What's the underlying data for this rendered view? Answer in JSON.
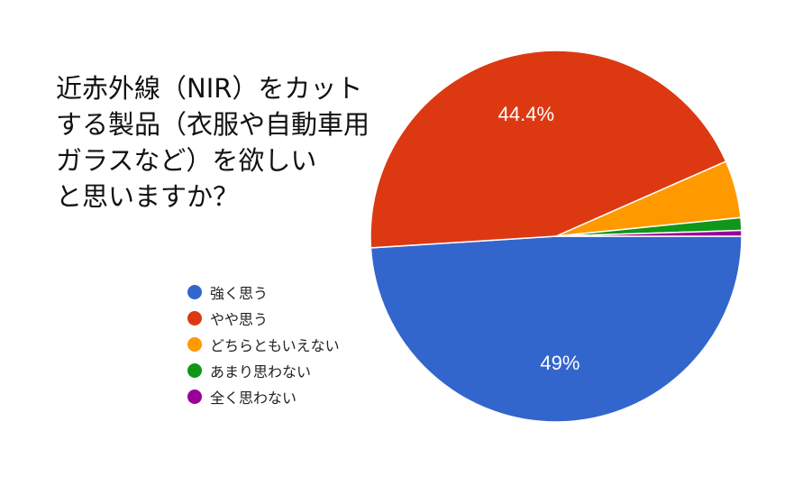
{
  "chart_data": {
    "type": "pie",
    "title_lines": [
      "近赤外線（NIR）をカット",
      "する製品（衣服や自動車用",
      "ガラスなど）を欲しい",
      "と思いますか？"
    ],
    "slices": [
      {
        "label": "強く思う",
        "value": 49,
        "display": "49%",
        "color": "#3366cc"
      },
      {
        "label": "やや思う",
        "value": 44.4,
        "display": "44.4%",
        "color": "#dc3912"
      },
      {
        "label": "どちらともいえない",
        "value": 5.0,
        "display": "",
        "color": "#ff9900"
      },
      {
        "label": "あまり思わない",
        "value": 1.1,
        "display": "",
        "color": "#109618"
      },
      {
        "label": "全く思わない",
        "value": 0.5,
        "display": "",
        "color": "#990099"
      }
    ],
    "legend_position": "left"
  }
}
